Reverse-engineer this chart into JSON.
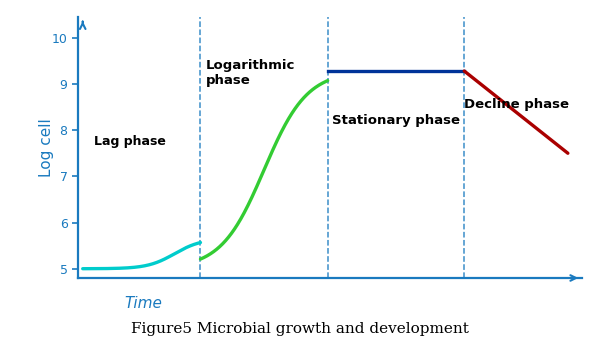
{
  "title": "Figure5 Microbial growth and development",
  "ylabel": "Log cell",
  "xlabel": "Time",
  "ylim": [
    4.8,
    10.45
  ],
  "xlim": [
    -0.1,
    10.6
  ],
  "yticks": [
    5,
    6,
    7,
    8,
    9,
    10
  ],
  "axis_color": "#1a7abf",
  "phase_line_color": "#1a7abf",
  "lag_phase_label": "Lag phase",
  "log_phase_label": "Logarithmic\nphase",
  "stationary_phase_label": "Stationary phase",
  "decline_phase_label": "Decline phase",
  "lag_color": "#00cccc",
  "log_color": "#33cc33",
  "stationary_color": "#003399",
  "decline_color": "#aa0000",
  "curve_lw": 2.4,
  "phase_boundaries": [
    2.5,
    5.2,
    8.1
  ],
  "lag_end_x": 2.5,
  "log_end_x": 5.2,
  "stationary_end_x": 8.1,
  "total_end_x": 10.3,
  "stationary_y": 9.28,
  "decline_end_y": 7.5
}
